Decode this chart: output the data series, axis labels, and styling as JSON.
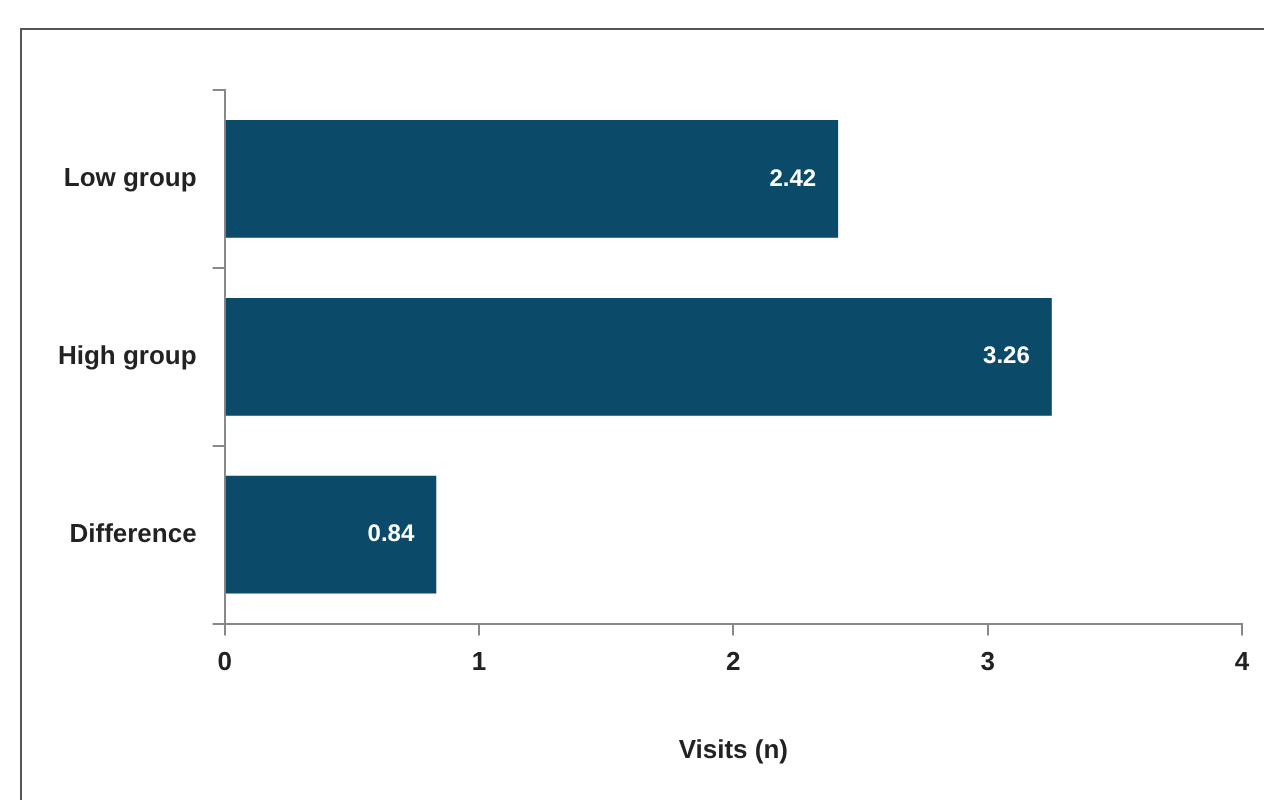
{
  "chart_data": {
    "type": "bar",
    "orientation": "horizontal",
    "categories": [
      "Low group",
      "High group",
      "Difference"
    ],
    "values": [
      2.42,
      3.26,
      0.84
    ],
    "color": "#0b4a68",
    "xlim": [
      0,
      4
    ],
    "xticks": [
      0,
      1,
      2,
      3,
      4
    ],
    "xlabel": "Visits (n)",
    "data_labels": true,
    "grid": false,
    "legend": false
  }
}
